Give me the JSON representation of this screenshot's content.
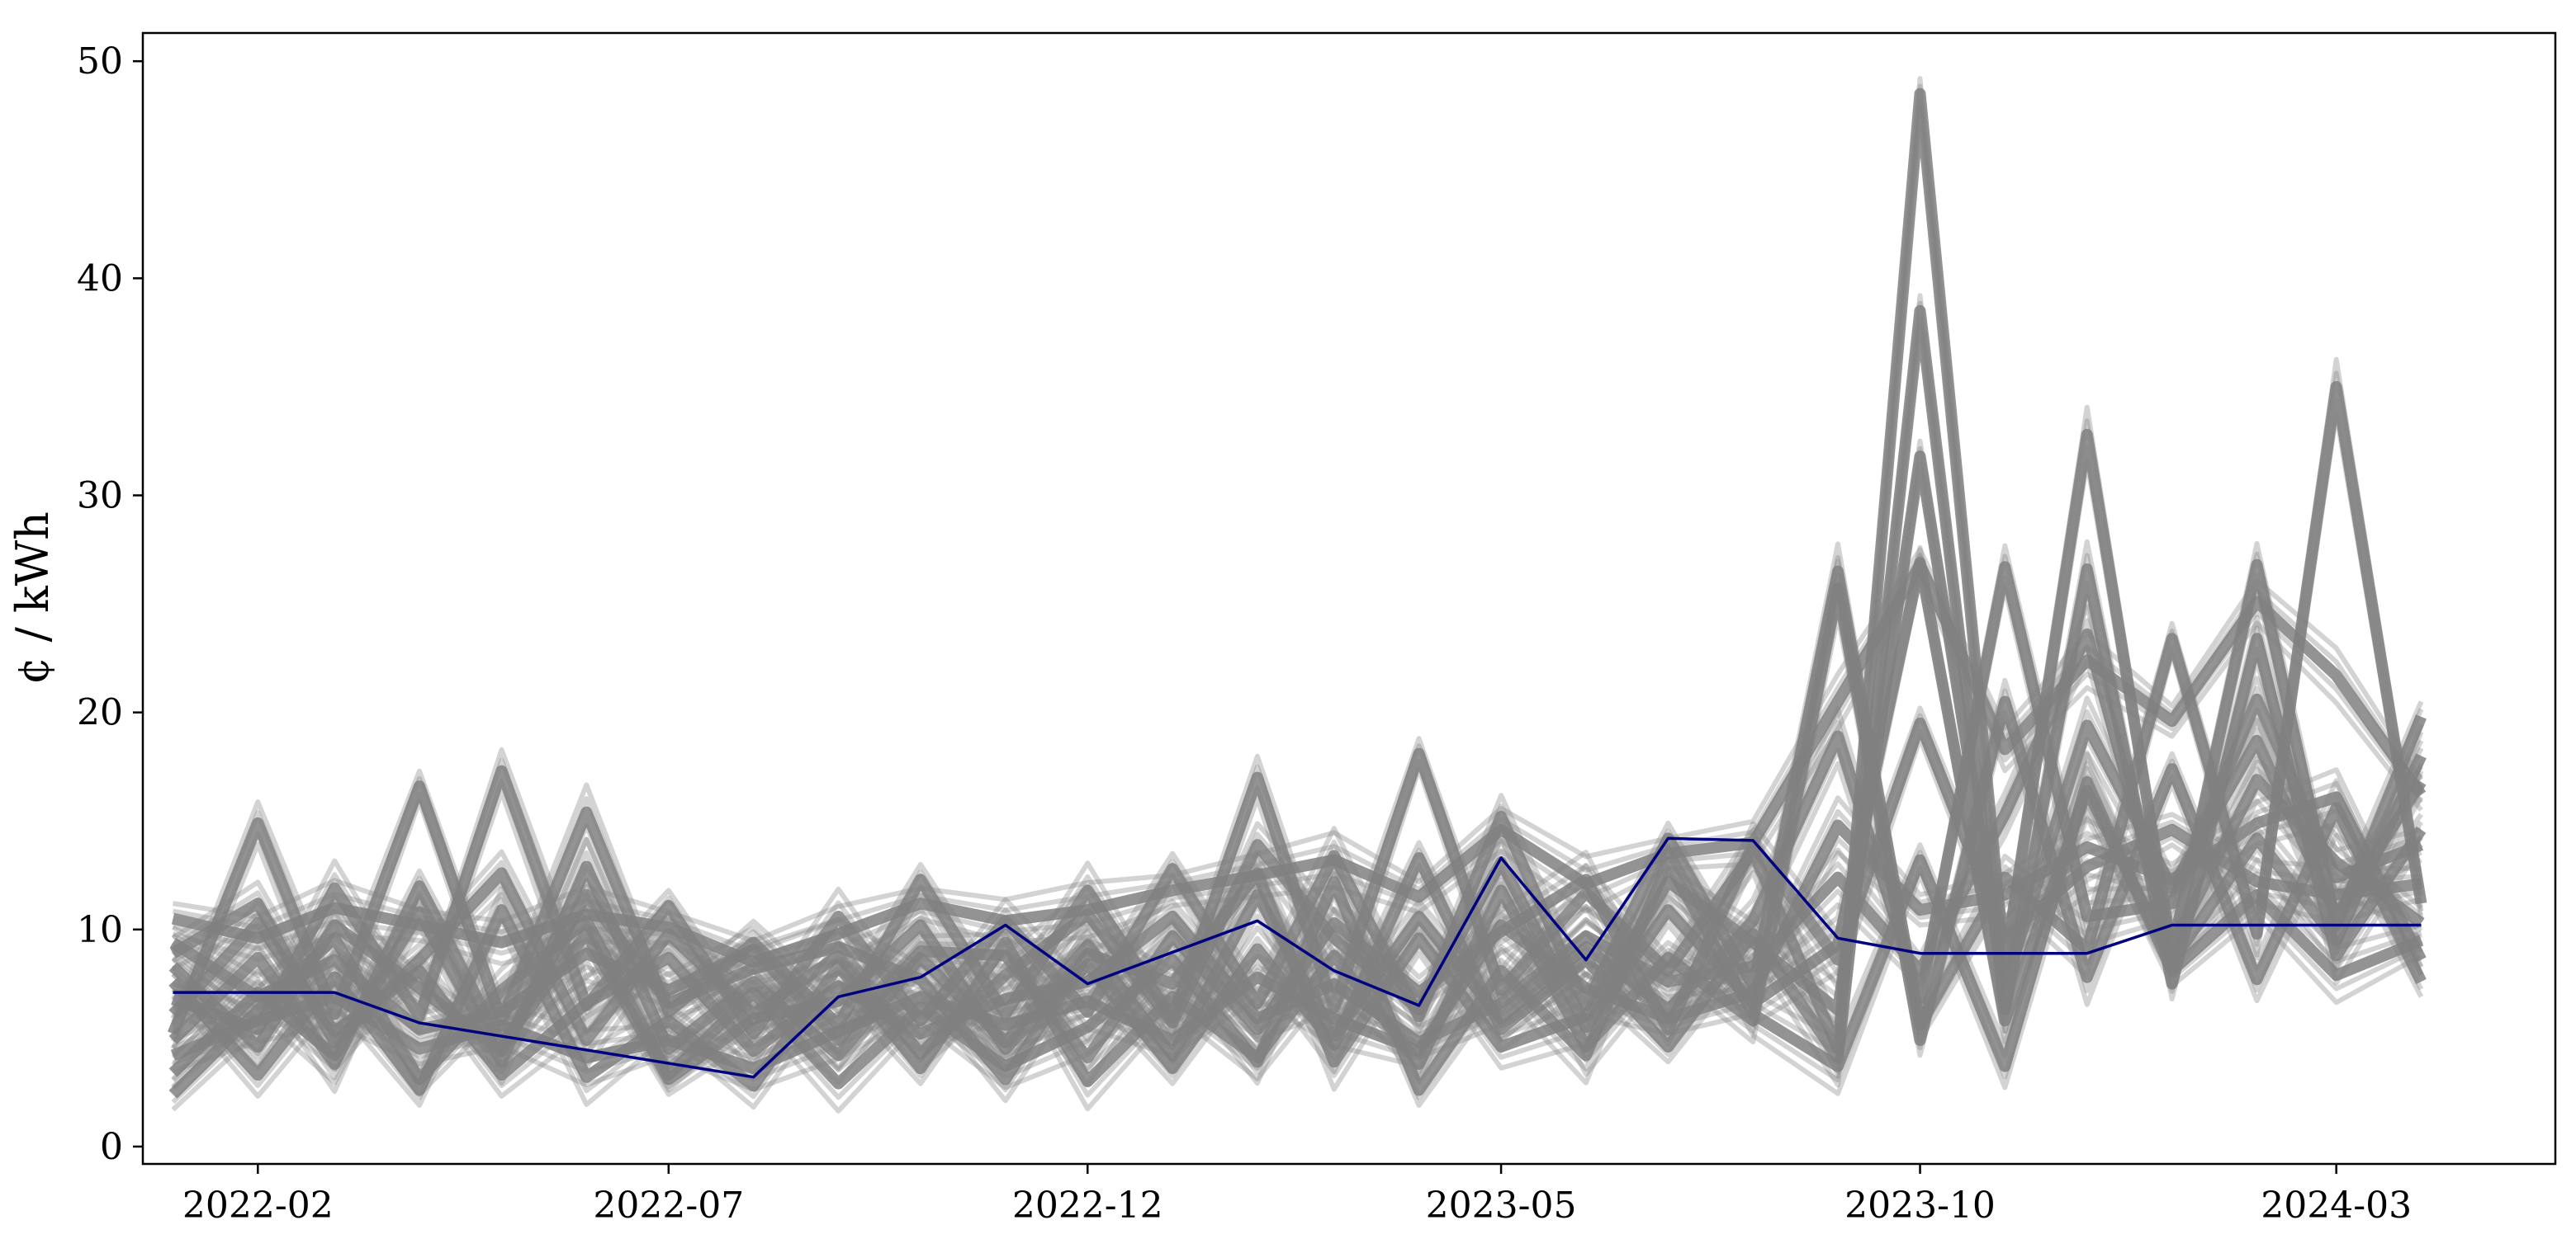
{
  "chart_data": {
    "type": "line",
    "title": "",
    "xlabel": "",
    "ylabel": "¢ / kWh",
    "x_tick_labels": [
      "2022-02",
      "2022-07",
      "2022-12",
      "2023-05",
      "2023-10",
      "2024-03"
    ],
    "x_ticks": [
      "2022-02-01",
      "2022-07-01",
      "2022-12-01",
      "2023-05-01",
      "2023-10-01",
      "2024-03-01"
    ],
    "xlim": [
      "2021-12-21",
      "2024-05-20"
    ],
    "y_ticks": [
      0,
      10,
      20,
      30,
      40,
      50
    ],
    "ylim": [
      -0.8,
      51.3
    ],
    "grid": false,
    "legend": "none",
    "colors": {
      "ensemble": "#808080",
      "highlight": "#000080",
      "axes": "#000000",
      "background": "#ffffff"
    },
    "ensemble_dates": [
      "2022-01-01",
      "2022-02-01",
      "2022-03-01",
      "2022-04-01",
      "2022-05-01",
      "2022-06-01",
      "2022-07-01",
      "2022-08-01",
      "2022-09-01",
      "2022-10-01",
      "2022-11-01",
      "2022-12-01",
      "2023-01-01",
      "2023-02-01",
      "2023-03-01",
      "2023-04-01",
      "2023-05-01",
      "2023-06-01",
      "2023-07-01",
      "2023-08-01",
      "2023-09-01",
      "2023-10-01",
      "2023-11-01",
      "2023-12-01",
      "2024-01-01",
      "2024-02-01",
      "2024-03-01",
      "2024-04-01"
    ],
    "ensemble_series": [
      [
        10.5,
        9.6,
        11.0,
        10.2,
        9.4,
        10.7,
        10.1,
        8.5,
        9.8,
        11.2,
        10.4,
        10.9,
        11.8,
        12.5,
        13.2,
        11.5,
        14.6,
        12.1,
        13.5,
        14.0,
        20.5,
        26.8,
        18.3,
        22.4,
        19.6,
        25.1,
        21.7,
        16.2
      ],
      [
        5.2,
        14.9,
        6.1,
        16.6,
        5.8,
        15.4,
        6.2,
        9.4,
        5.6,
        12.3,
        6.1,
        11.8,
        5.9,
        17.0,
        6.4,
        18.1,
        7.2,
        11.7,
        8.1,
        13.6,
        4.5,
        48.5,
        8.4,
        32.8,
        9.0,
        26.8,
        10.2,
        19.8
      ],
      [
        6.8,
        5.4,
        11.9,
        6.0,
        17.3,
        6.5,
        11.1,
        5.2,
        10.6,
        5.8,
        10.4,
        6.2,
        12.8,
        6.6,
        13.4,
        6.0,
        15.2,
        6.5,
        14.2,
        7.4,
        26.5,
        5.6,
        12.4,
        9.1,
        23.4,
        9.8,
        35.0,
        11.2
      ],
      [
        3.4,
        7.1,
        4.2,
        10.8,
        3.9,
        12.9,
        4.5,
        7.6,
        4.2,
        8.7,
        4.8,
        9.3,
        4.2,
        11.6,
        5.1,
        10.6,
        5.9,
        9.2,
        6.3,
        10.4,
        18.9,
        6.8,
        26.7,
        10.6,
        11.2,
        20.6,
        12.4,
        13.9
      ],
      [
        8.9,
        11.2,
        4.8,
        8.6,
        12.6,
        4.9,
        9.8,
        6.1,
        8.8,
        4.3,
        7.9,
        10.7,
        5.7,
        13.9,
        9.6,
        6.3,
        13.1,
        5.5,
        10.9,
        6.6,
        9.3,
        26.9,
        5.8,
        16.4,
        8.5,
        14.2,
        9.5,
        18.0
      ],
      [
        2.4,
        6.3,
        9.6,
        3.1,
        7.2,
        10.4,
        3.3,
        7.1,
        2.9,
        6.4,
        3.7,
        5.5,
        8.6,
        3.9,
        12.2,
        2.6,
        8.1,
        4.2,
        13.1,
        6.1,
        3.7,
        13.2,
        3.7,
        16.8,
        8.1,
        11.6,
        7.9,
        9.5
      ],
      [
        7.6,
        3.3,
        7.8,
        2.6,
        10.9,
        3.2,
        5.8,
        2.8,
        8.3,
        3.6,
        9.4,
        3.0,
        6.9,
        4.1,
        8.8,
        3.8,
        11.8,
        4.6,
        8.7,
        5.8,
        25.7,
        4.9,
        20.5,
        7.8,
        17.4,
        7.7,
        15.6,
        7.6
      ],
      [
        4.9,
        8.7,
        3.8,
        12.0,
        4.7,
        9.8,
        3.1,
        5.9,
        6.7,
        10.2,
        4.5,
        8.4,
        3.6,
        9.1,
        4.7,
        13.3,
        5.4,
        8.6,
        4.6,
        9.8,
        4.1,
        38.5,
        6.3,
        26.6,
        7.5,
        23.4,
        8.8,
        14.6
      ],
      [
        9.4,
        6.9,
        8.6,
        5.4,
        6.2,
        8.9,
        7.2,
        9.1,
        4.9,
        9.0,
        8.8,
        4.1,
        9.7,
        5.4,
        10.3,
        7.1,
        9.9,
        12.3,
        5.4,
        13.9,
        8.6,
        19.5,
        9.6,
        12.9,
        14.6,
        12.2,
        11.6,
        12.1
      ],
      [
        6.1,
        10.3,
        5.3,
        8.1,
        3.3,
        6.6,
        8.7,
        4.4,
        7.4,
        5.2,
        6.8,
        7.6,
        10.6,
        5.9,
        7.5,
        4.8,
        6.6,
        9.7,
        7.6,
        8.3,
        12.4,
        8.1,
        15.3,
        23.6,
        9.2,
        16.9,
        13.1,
        10.3
      ],
      [
        4.2,
        5.8,
        6.9,
        4.5,
        5.6,
        4.1,
        4.9,
        3.6,
        5.3,
        6.9,
        5.6,
        6.7,
        4.9,
        7.8,
        5.9,
        4.4,
        10.2,
        7.3,
        5.9,
        7.1,
        14.8,
        10.9,
        11.6,
        13.8,
        12.3,
        14.9,
        16.1,
        8.6
      ],
      [
        8.3,
        4.6,
        10.2,
        7.3,
        4.4,
        11.6,
        6.6,
        8.2,
        9.2,
        7.7,
        3.1,
        8.9,
        7.5,
        12.6,
        3.9,
        9.6,
        4.6,
        6.0,
        12.2,
        9.4,
        6.3,
        31.8,
        7.4,
        19.4,
        11.9,
        18.7,
        10.6,
        16.8
      ]
    ],
    "highlight_series": {
      "x": [
        "2022-01-01",
        "2022-03-01",
        "2022-04-01",
        "2022-08-01",
        "2022-09-01",
        "2022-10-01",
        "2022-11-01",
        "2022-12-01",
        "2023-02-01",
        "2023-03-01",
        "2023-04-01",
        "2023-05-01",
        "2023-06-01",
        "2023-07-01",
        "2023-08-01",
        "2023-09-01",
        "2023-10-01",
        "2023-12-01",
        "2024-01-01",
        "2024-04-01"
      ],
      "y": [
        7.1,
        7.1,
        5.7,
        3.2,
        6.9,
        7.8,
        10.2,
        7.5,
        10.4,
        8.1,
        6.5,
        13.3,
        8.6,
        14.2,
        14.1,
        9.6,
        8.9,
        8.9,
        10.2,
        10.2
      ]
    }
  }
}
